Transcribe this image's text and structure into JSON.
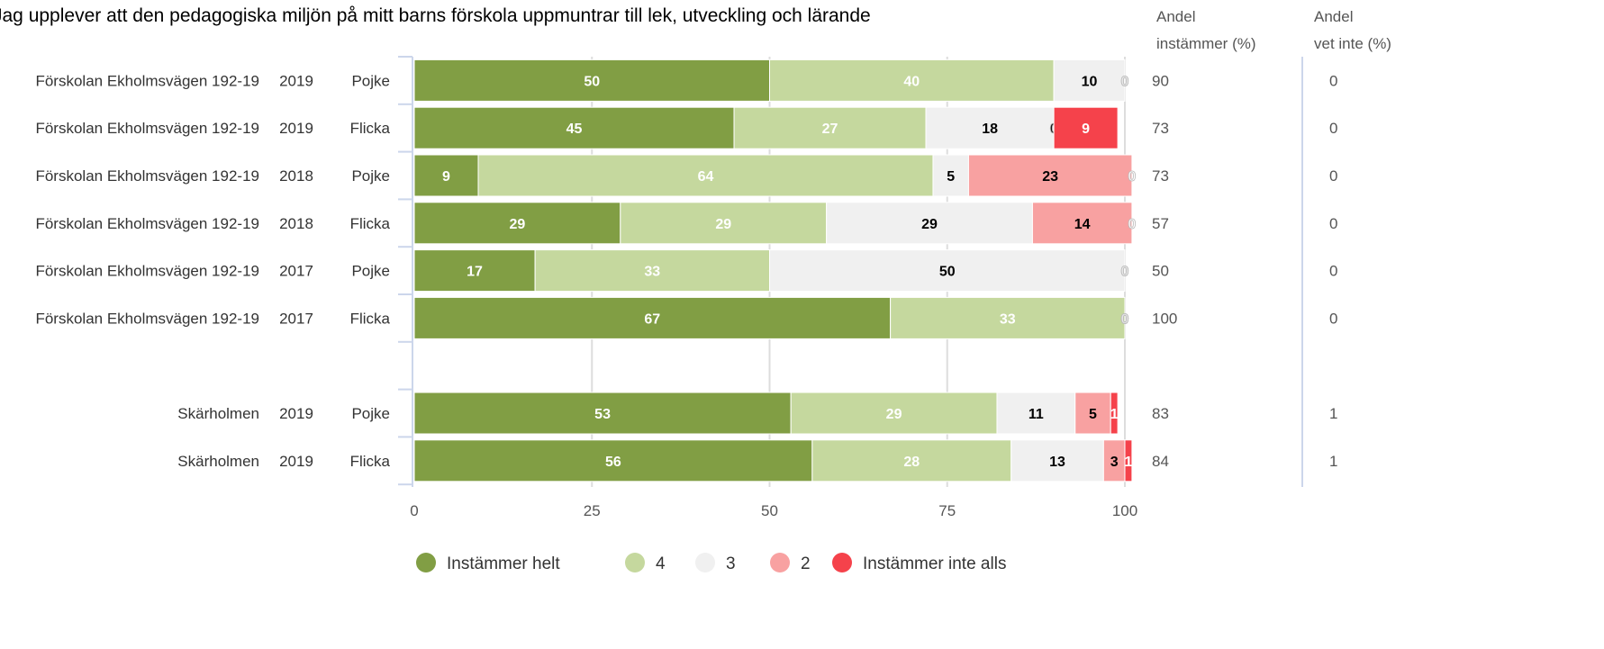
{
  "chart_data": {
    "type": "bar",
    "orientation": "horizontal",
    "stacked": true,
    "title": "Jag upplever att den pedagogiska miljön på mitt barns förskola uppmuntrar till lek, utveckling och lärande",
    "xlim": [
      0,
      100
    ],
    "xticks": [
      0,
      25,
      50,
      75,
      100
    ],
    "grid": true,
    "legend_position": "bottom",
    "series": [
      {
        "name": "Instämmer helt",
        "color": "#819e44",
        "label_color": "#ffffff"
      },
      {
        "name": "4",
        "color": "#c5d89e",
        "label_color": "#ffffff"
      },
      {
        "name": "3",
        "color": "#f0f0f0",
        "label_color": "#000000"
      },
      {
        "name": "2",
        "color": "#f8a1a1",
        "label_color": "#000000"
      },
      {
        "name": "Instämmer inte alls",
        "color": "#f5424b",
        "label_color": "#ffffff"
      }
    ],
    "column_headers": {
      "agree": [
        "Andel",
        "instämmer (%)"
      ],
      "dont_know": [
        "Andel",
        "vet inte (%)"
      ]
    },
    "rows": [
      {
        "unit": "Förskolan Ekholmsvägen 192-19",
        "year": "2019",
        "gender": "Pojke",
        "values": [
          50,
          40,
          10,
          0,
          0
        ],
        "agree": "90",
        "dont_know": "0"
      },
      {
        "unit": "Förskolan Ekholmsvägen 192-19",
        "year": "2019",
        "gender": "Flicka",
        "values": [
          45,
          27,
          18,
          0,
          9
        ],
        "agree": "73",
        "dont_know": "0"
      },
      {
        "unit": "Förskolan Ekholmsvägen 192-19",
        "year": "2018",
        "gender": "Pojke",
        "values": [
          9,
          64,
          5,
          23,
          0
        ],
        "agree": "73",
        "dont_know": "0"
      },
      {
        "unit": "Förskolan Ekholmsvägen 192-19",
        "year": "2018",
        "gender": "Flicka",
        "values": [
          29,
          29,
          29,
          14,
          0
        ],
        "agree": "57",
        "dont_know": "0"
      },
      {
        "unit": "Förskolan Ekholmsvägen 192-19",
        "year": "2017",
        "gender": "Pojke",
        "values": [
          17,
          33,
          50,
          0,
          0
        ],
        "agree": "50",
        "dont_know": "0"
      },
      {
        "unit": "Förskolan Ekholmsvägen 192-19",
        "year": "2017",
        "gender": "Flicka",
        "values": [
          67,
          33,
          0,
          0,
          0
        ],
        "agree": "100",
        "dont_know": "0"
      },
      {
        "spacer": true
      },
      {
        "unit": "Skärholmen",
        "year": "2019",
        "gender": "Pojke",
        "values": [
          53,
          29,
          11,
          5,
          1
        ],
        "agree": "83",
        "dont_know": "1"
      },
      {
        "unit": "Skärholmen",
        "year": "2019",
        "gender": "Flicka",
        "values": [
          56,
          28,
          13,
          3,
          1
        ],
        "agree": "84",
        "dont_know": "1"
      }
    ]
  }
}
